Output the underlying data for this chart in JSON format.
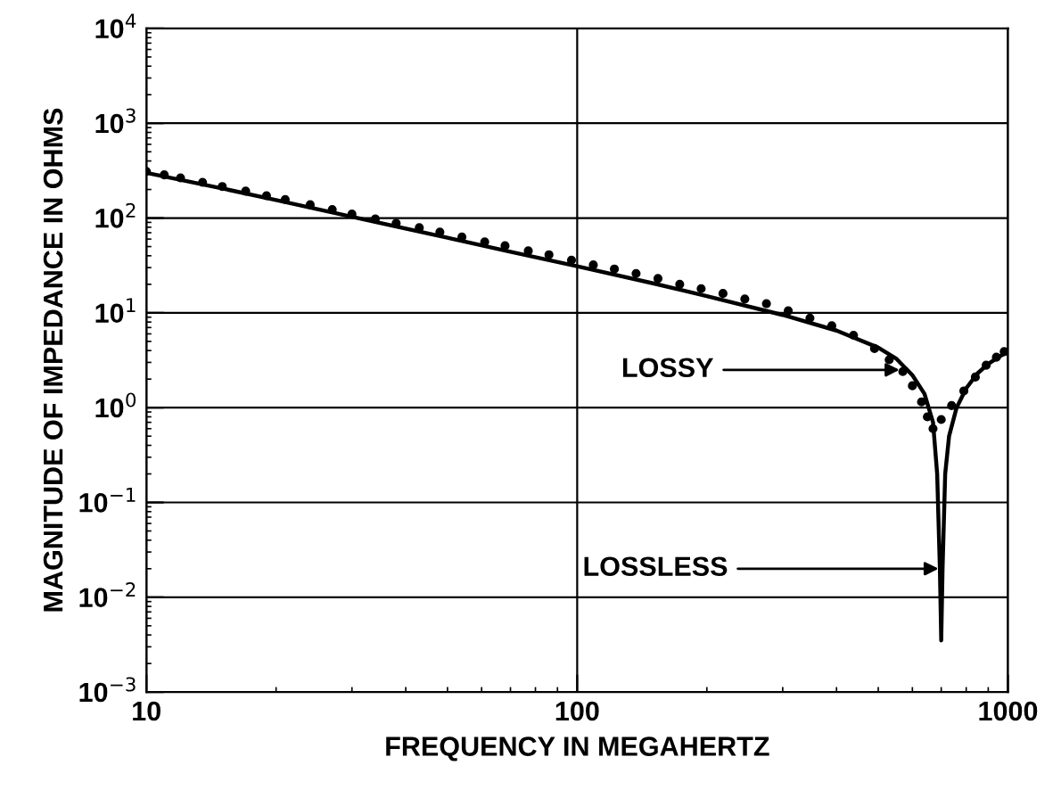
{
  "chart_data": {
    "type": "line",
    "xlabel": "FREQUENCY IN MEGAHERTZ",
    "ylabel": "MAGNITUDE OF IMPEDANCE IN OHMS",
    "log": "xy",
    "grid": true,
    "xlim": [
      10,
      1000
    ],
    "xticks": [
      10,
      100,
      1000
    ],
    "ylim": [
      0.001,
      10000
    ],
    "yticks": [
      {
        "value": 0.001,
        "label": "10$^{−3}$"
      },
      {
        "value": 0.01,
        "label": "10$^{−2}$"
      },
      {
        "value": 0.1,
        "label": "10$^{−1}$"
      },
      {
        "value": 1,
        "label": "10$^{0}$"
      },
      {
        "value": 10,
        "label": "10$^{1}$"
      },
      {
        "value": 100,
        "label": "10$^{2}$"
      },
      {
        "value": 1000,
        "label": "10$^{3}$"
      },
      {
        "value": 10000,
        "label": "10$^{4}$"
      }
    ],
    "series": [
      {
        "color": "#000000",
        "line_style": "solid",
        "marker": "none",
        "x": [
          10,
          15,
          20,
          30,
          50,
          70,
          100,
          150,
          200,
          300,
          400,
          500,
          550,
          600,
          640,
          670,
          685,
          695,
          700,
          705,
          715,
          730,
          760,
          800,
          850,
          900,
          950,
          1000
        ],
        "values": [
          300,
          205,
          155,
          103,
          62,
          44,
          31,
          20.5,
          15,
          9.5,
          6.5,
          4.3,
          3.3,
          2.2,
          1.4,
          0.7,
          0.2,
          0.02,
          0.0035,
          0.02,
          0.2,
          0.5,
          1.0,
          1.6,
          2.3,
          2.9,
          3.4,
          3.9
        ]
      },
      {
        "type": "scatter",
        "color": "#000000",
        "marker": "circle",
        "x": [
          10,
          11,
          12,
          13.5,
          15,
          17,
          19,
          21,
          24,
          27,
          30,
          34,
          38,
          43,
          48,
          54,
          61,
          68,
          77,
          86,
          97,
          109,
          122,
          137,
          154,
          173,
          194,
          218,
          245,
          275,
          309,
          347,
          390,
          438,
          490,
          530,
          570,
          600,
          630,
          650,
          670,
          700,
          740,
          790,
          840,
          890,
          940,
          980
        ],
        "values": [
          310,
          285,
          265,
          238,
          215,
          192,
          172,
          157,
          138,
          123,
          110,
          98,
          88,
          79,
          71,
          63,
          56,
          51,
          45,
          41,
          36,
          32,
          29,
          26,
          23,
          20,
          18,
          16,
          14,
          12.5,
          10.5,
          8.8,
          7.3,
          5.8,
          4.2,
          3.2,
          2.4,
          1.7,
          1.15,
          0.8,
          0.6,
          0.75,
          1.05,
          1.5,
          2.1,
          2.8,
          3.4,
          3.9
        ]
      }
    ],
    "annotations": [
      {
        "text": "LOSSY",
        "x": 560,
        "y": 2.5
      },
      {
        "text": "LOSSLESS",
        "x": 690,
        "y": 0.02
      }
    ]
  }
}
